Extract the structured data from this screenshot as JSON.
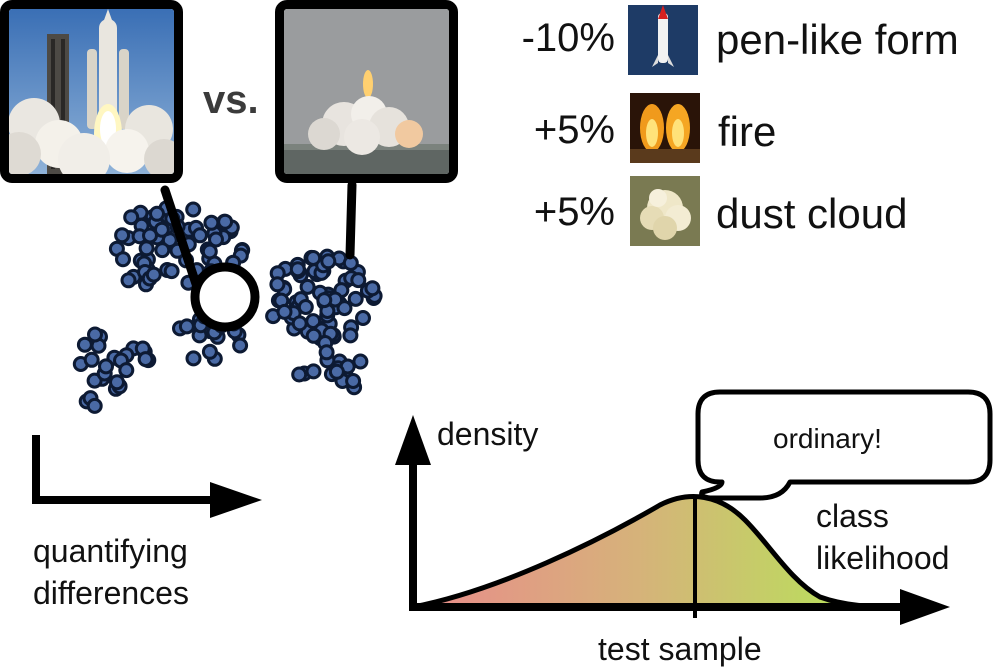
{
  "comparison": {
    "vs_label": "vs."
  },
  "features": [
    {
      "delta": "-10%",
      "label": "pen-like form",
      "icon": "rocket-icon"
    },
    {
      "delta": "+5%",
      "label": "fire",
      "icon": "fire-icon"
    },
    {
      "delta": "+5%",
      "label": "dust cloud",
      "icon": "dust-cloud-icon"
    }
  ],
  "scatter": {
    "axis_label": "quantifying differences",
    "axis_label_line1": "quantifying",
    "axis_label_line2": "differences"
  },
  "density_plot": {
    "y_label": "density",
    "x_marker_label": "test sample",
    "curve_label_line1": "class",
    "curve_label_line2": "likelihood",
    "bubble_text": "ordinary!"
  },
  "colors": {
    "point_fill": "#4a6aa5",
    "point_stroke": "#0d1a33",
    "gradient_start": "#e98b8b",
    "gradient_end": "#b8e25a"
  }
}
